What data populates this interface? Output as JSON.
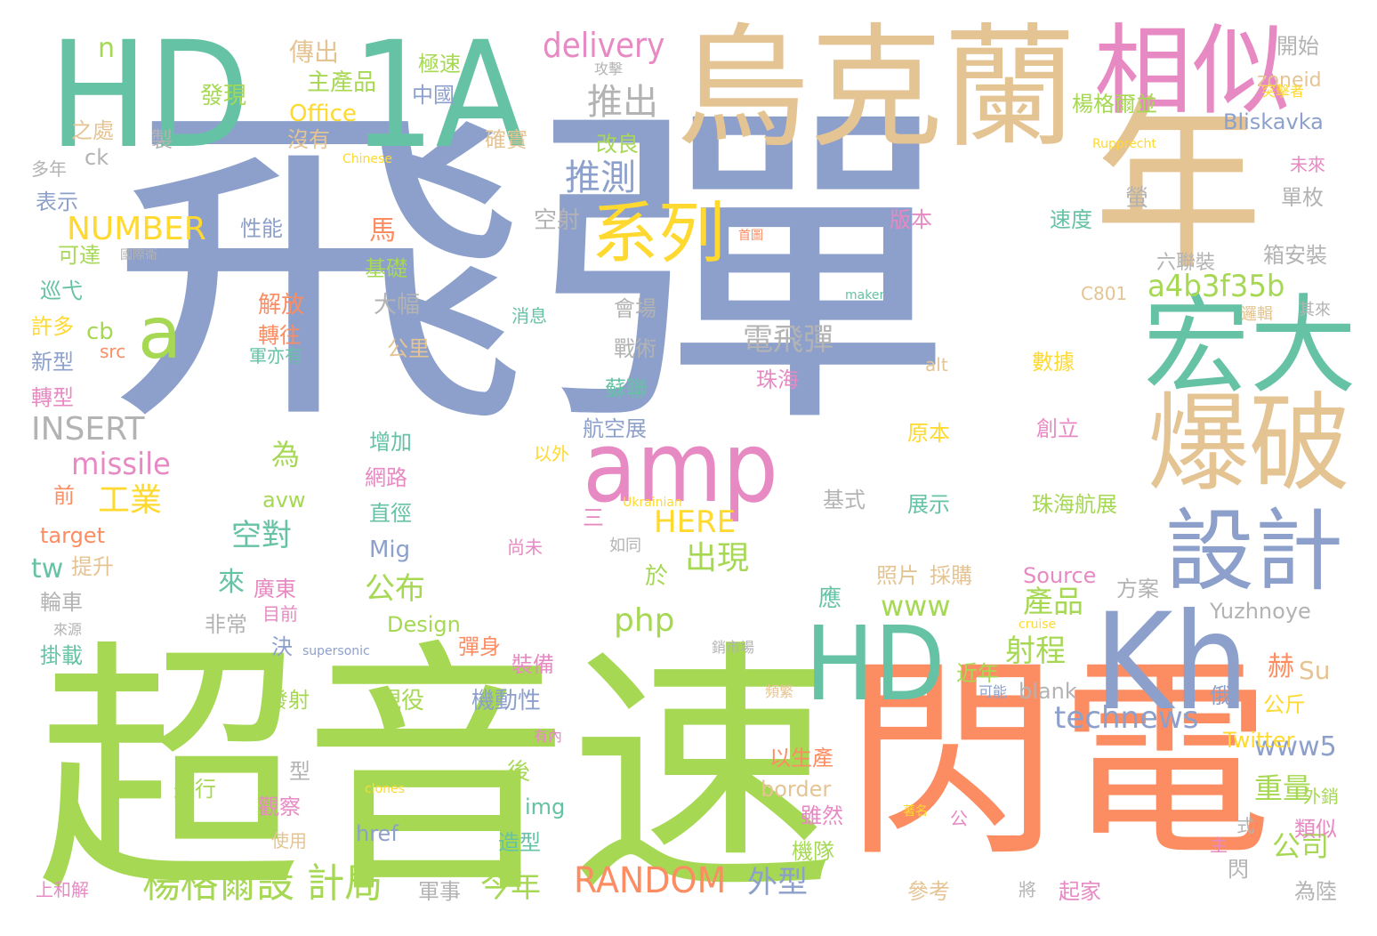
{
  "words": [
    {
      "text": "飛彈",
      "color": "blue"
    },
    {
      "text": "超音速",
      "color": "green"
    },
    {
      "text": "閃電",
      "color": "orange"
    },
    {
      "text": "烏克蘭",
      "color": "tan"
    },
    {
      "text": "HD",
      "color": "teal"
    },
    {
      "text": "1A",
      "color": "teal"
    },
    {
      "text": "年",
      "color": "tan"
    },
    {
      "text": "相似",
      "color": "pink"
    },
    {
      "text": "宏大",
      "color": "teal"
    },
    {
      "text": "爆破",
      "color": "tan"
    },
    {
      "text": "Kh",
      "color": "blue"
    },
    {
      "text": "amp",
      "color": "pink"
    },
    {
      "text": "HD",
      "color": "teal"
    },
    {
      "text": "設計",
      "color": "blue"
    },
    {
      "text": "系列",
      "color": "yellow"
    },
    {
      "text": "a",
      "color": "green"
    },
    {
      "text": "楊格爾設 計局",
      "color": "green"
    },
    {
      "text": "RANDOM",
      "color": "orange"
    },
    {
      "text": "delivery",
      "color": "pink"
    },
    {
      "text": "推出",
      "color": "gray"
    },
    {
      "text": "推測",
      "color": "blue"
    },
    {
      "text": "NUMBER",
      "color": "yellow"
    },
    {
      "text": "a4b3f35b",
      "color": "green"
    },
    {
      "text": "電飛彈",
      "color": "gray"
    },
    {
      "text": "INSERT",
      "color": "gray"
    },
    {
      "text": "missile",
      "color": "pink"
    },
    {
      "text": "工業",
      "color": "yellow"
    },
    {
      "text": "空對",
      "color": "teal"
    },
    {
      "text": "HERE",
      "color": "yellow"
    },
    {
      "text": "technews",
      "color": "blue"
    },
    {
      "text": "出現",
      "color": "green"
    },
    {
      "text": "射程",
      "color": "green"
    },
    {
      "text": "產品",
      "color": "green"
    },
    {
      "text": "www",
      "color": "green"
    },
    {
      "text": "php",
      "color": "green"
    },
    {
      "text": "公布",
      "color": "green"
    },
    {
      "text": "www5",
      "color": "blue"
    },
    {
      "text": "重量",
      "color": "green"
    },
    {
      "text": "公司",
      "color": "green"
    },
    {
      "text": "今年",
      "color": "green"
    },
    {
      "text": "外型",
      "color": "blue"
    },
    {
      "text": "n",
      "color": "green"
    },
    {
      "text": "傳出",
      "color": "tan"
    },
    {
      "text": "極速",
      "color": "green"
    },
    {
      "text": "主產品",
      "color": "green"
    },
    {
      "text": "發現",
      "color": "green"
    },
    {
      "text": "Office",
      "color": "yellow"
    },
    {
      "text": "中國",
      "color": "blue"
    },
    {
      "text": "開始",
      "color": "gray"
    },
    {
      "text": "zoneid",
      "color": "tan"
    },
    {
      "text": "楊格爾並",
      "color": "green"
    },
    {
      "text": "Bliskavka",
      "color": "blue"
    },
    {
      "text": "沒有",
      "color": "tan"
    },
    {
      "text": "之處",
      "color": "tan"
    },
    {
      "text": "製",
      "color": "gray"
    },
    {
      "text": "ck",
      "color": "gray"
    },
    {
      "text": "確實",
      "color": "tan"
    },
    {
      "text": "改良",
      "color": "green"
    },
    {
      "text": "多年",
      "color": "gray"
    },
    {
      "text": "Chinese",
      "color": "yellow"
    },
    {
      "text": "Rupprecht",
      "color": "yellow"
    },
    {
      "text": "表示",
      "color": "blue"
    },
    {
      "text": "性能",
      "color": "blue"
    },
    {
      "text": "馬",
      "color": "orange"
    },
    {
      "text": "空射",
      "color": "gray"
    },
    {
      "text": "版本",
      "color": "pink"
    },
    {
      "text": "速度",
      "color": "teal"
    },
    {
      "text": "單枚",
      "color": "gray"
    },
    {
      "text": "箱安裝",
      "color": "gray"
    },
    {
      "text": "六聯裝",
      "color": "gray"
    },
    {
      "text": "可達",
      "color": "green"
    },
    {
      "text": "國際衛",
      "color": "gray"
    },
    {
      "text": "基礎",
      "color": "green"
    },
    {
      "text": "首圖",
      "color": "orange"
    },
    {
      "text": "巡弋",
      "color": "teal"
    },
    {
      "text": "解放",
      "color": "orange"
    },
    {
      "text": "大幅",
      "color": "gray"
    },
    {
      "text": "maker",
      "color": "teal"
    },
    {
      "text": "C801",
      "color": "tan"
    },
    {
      "text": "許多",
      "color": "yellow"
    },
    {
      "text": "cb",
      "color": "green"
    },
    {
      "text": "轉往",
      "color": "orange"
    },
    {
      "text": "消息",
      "color": "teal"
    },
    {
      "text": "會場",
      "color": "gray"
    },
    {
      "text": "新型",
      "color": "blue"
    },
    {
      "text": "src",
      "color": "orange"
    },
    {
      "text": "軍亦有",
      "color": "teal"
    },
    {
      "text": "公里",
      "color": "tan"
    },
    {
      "text": "戰術",
      "color": "gray"
    },
    {
      "text": "alt",
      "color": "tan"
    },
    {
      "text": "數據",
      "color": "yellow"
    },
    {
      "text": "轉型",
      "color": "pink"
    },
    {
      "text": "珠海",
      "color": "pink"
    },
    {
      "text": "蘇聯",
      "color": "teal"
    },
    {
      "text": "原本",
      "color": "yellow"
    },
    {
      "text": "創立",
      "color": "pink"
    },
    {
      "text": "為",
      "color": "green"
    },
    {
      "text": "增加",
      "color": "teal"
    },
    {
      "text": "航空展",
      "color": "blue"
    },
    {
      "text": "以外",
      "color": "yellow"
    },
    {
      "text": "網路",
      "color": "pink"
    },
    {
      "text": "前",
      "color": "orange"
    },
    {
      "text": "avw",
      "color": "green"
    },
    {
      "text": "直徑",
      "color": "teal"
    },
    {
      "text": "基式",
      "color": "gray"
    },
    {
      "text": "展示",
      "color": "teal"
    },
    {
      "text": "珠海航展",
      "color": "green"
    },
    {
      "text": "Ukrainian",
      "color": "yellow"
    },
    {
      "text": "target",
      "color": "orange"
    },
    {
      "text": "三",
      "color": "pink"
    },
    {
      "text": "Mig",
      "color": "blue"
    },
    {
      "text": "如同",
      "color": "gray"
    },
    {
      "text": "尚未",
      "color": "pink"
    },
    {
      "text": "tw",
      "color": "teal"
    },
    {
      "text": "提升",
      "color": "tan"
    },
    {
      "text": "來",
      "color": "teal"
    },
    {
      "text": "於",
      "color": "green"
    },
    {
      "text": "廣東",
      "color": "pink"
    },
    {
      "text": "目前",
      "color": "pink"
    },
    {
      "text": "照片",
      "color": "tan"
    },
    {
      "text": "採購",
      "color": "tan"
    },
    {
      "text": "方案",
      "color": "gray"
    },
    {
      "text": "Source",
      "color": "pink"
    },
    {
      "text": "輪車",
      "color": "gray"
    },
    {
      "text": "非常",
      "color": "gray"
    },
    {
      "text": "應",
      "color": "teal"
    },
    {
      "text": "Yuzhnoye",
      "color": "gray"
    },
    {
      "text": "Design",
      "color": "green"
    },
    {
      "text": "決",
      "color": "blue"
    },
    {
      "text": "supersonic",
      "color": "blue"
    },
    {
      "text": "銷市場",
      "color": "gray"
    },
    {
      "text": "cruise",
      "color": "yellow"
    },
    {
      "text": "來源",
      "color": "gray"
    },
    {
      "text": "掛載",
      "color": "teal"
    },
    {
      "text": "彈身",
      "color": "orange"
    },
    {
      "text": "裝備",
      "color": "pink"
    },
    {
      "text": "近年",
      "color": "green"
    },
    {
      "text": "赫",
      "color": "orange"
    },
    {
      "text": "Su",
      "color": "tan"
    },
    {
      "text": "可能",
      "color": "blue"
    },
    {
      "text": "blank",
      "color": "gray"
    },
    {
      "text": "發射",
      "color": "green"
    },
    {
      "text": "現役",
      "color": "green"
    },
    {
      "text": "機動性",
      "color": "blue"
    },
    {
      "text": "頻繁",
      "color": "tan"
    },
    {
      "text": "俄",
      "color": "blue"
    },
    {
      "text": "公斤",
      "color": "yellow"
    },
    {
      "text": "有內",
      "color": "pink"
    },
    {
      "text": "Twitter",
      "color": "yellow"
    },
    {
      "text": "後",
      "color": "green"
    },
    {
      "text": "以生產",
      "color": "orange"
    },
    {
      "text": "型",
      "color": "gray"
    },
    {
      "text": "飛行",
      "color": "green"
    },
    {
      "text": "clones",
      "color": "yellow"
    },
    {
      "text": "border",
      "color": "tan"
    },
    {
      "text": "觀察",
      "color": "pink"
    },
    {
      "text": "img",
      "color": "teal"
    },
    {
      "text": "雖然",
      "color": "pink"
    },
    {
      "text": "著名",
      "color": "yellow"
    },
    {
      "text": "外銷",
      "color": "green"
    },
    {
      "text": "類似",
      "color": "pink"
    },
    {
      "text": "href",
      "color": "blue"
    },
    {
      "text": "造型",
      "color": "teal"
    },
    {
      "text": "機隊",
      "color": "green"
    },
    {
      "text": "式",
      "color": "gray"
    },
    {
      "text": "使用",
      "color": "tan"
    },
    {
      "text": "主",
      "color": "pink"
    },
    {
      "text": "上和解",
      "color": "pink"
    },
    {
      "text": "軍事",
      "color": "gray"
    },
    {
      "text": "參考",
      "color": "tan"
    },
    {
      "text": "將",
      "color": "gray"
    },
    {
      "text": "起家",
      "color": "pink"
    },
    {
      "text": "閃",
      "color": "gray"
    },
    {
      "text": "為陸",
      "color": "gray"
    },
    {
      "text": "未來",
      "color": "pink"
    },
    {
      "text": "其來",
      "color": "gray"
    },
    {
      "text": "邏輯",
      "color": "tan"
    },
    {
      "text": "螢",
      "color": "gray"
    },
    {
      "text": "突擊者",
      "color": "yellow"
    },
    {
      "text": "攻擊",
      "color": "gray"
    },
    {
      "text": "公",
      "color": "pink"
    }
  ]
}
